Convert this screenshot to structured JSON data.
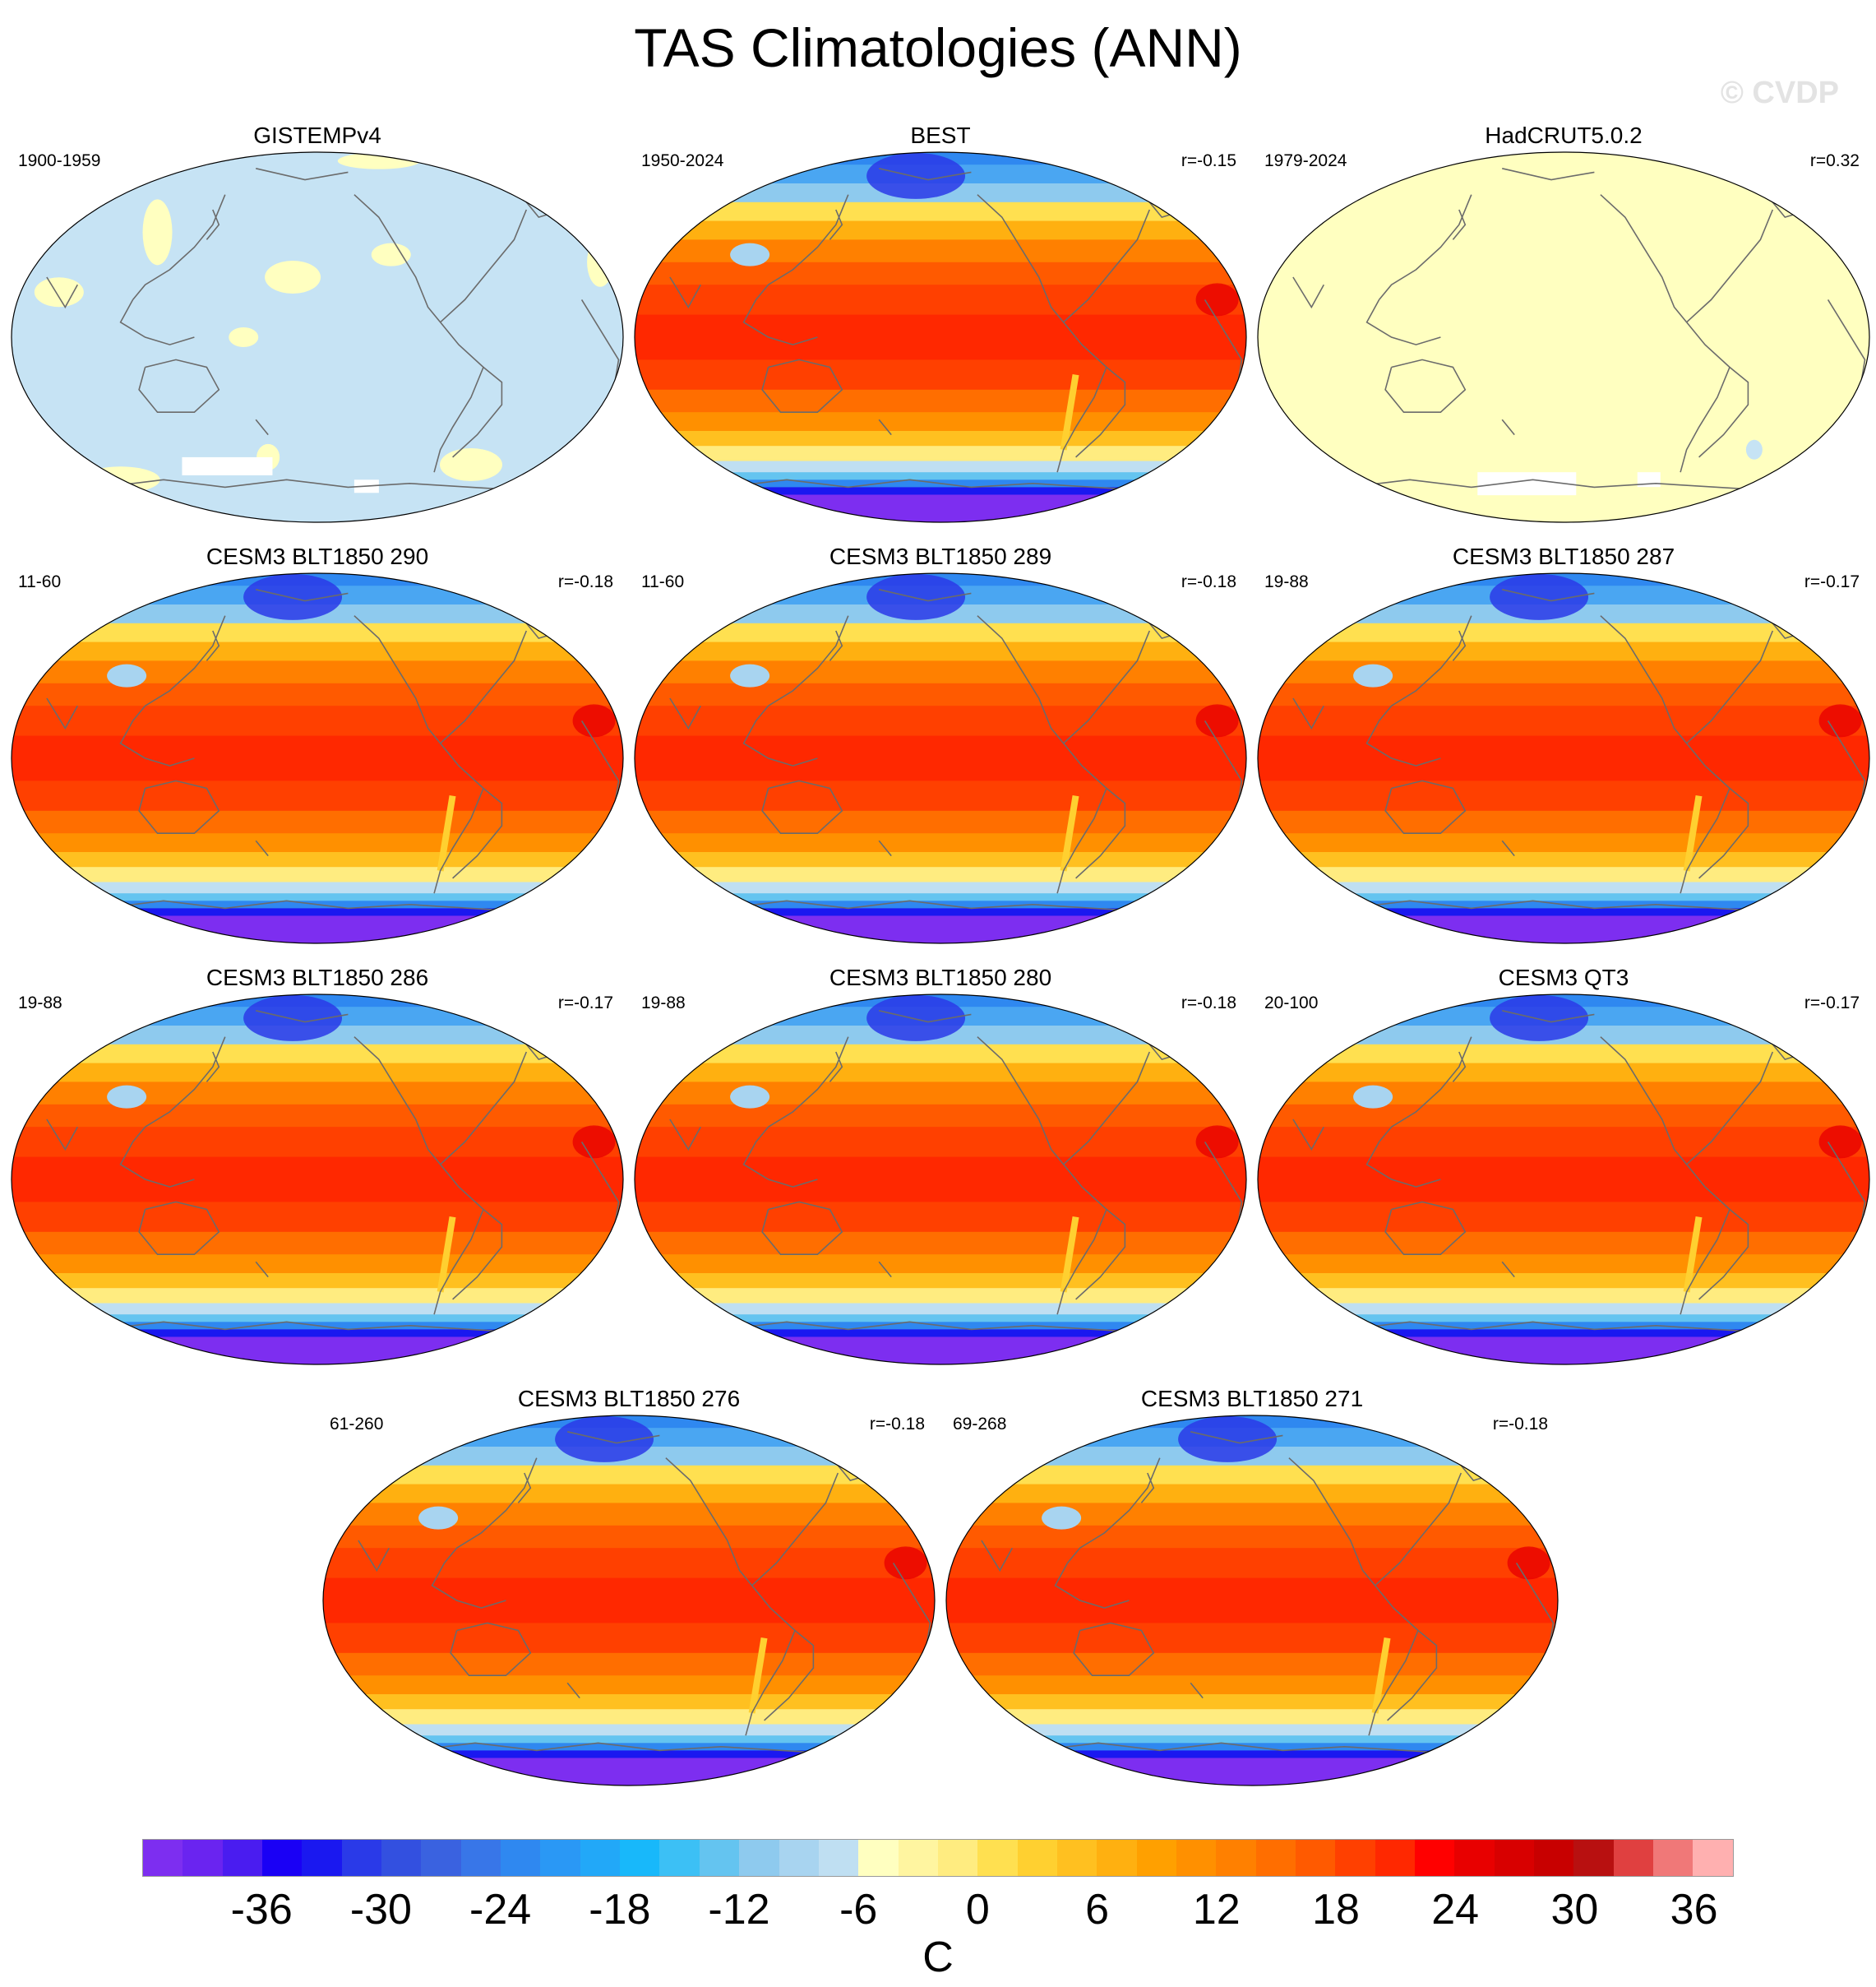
{
  "figure": {
    "title": "TAS Climatologies (ANN)",
    "watermark": "© CVDP"
  },
  "panels": [
    {
      "title": "GISTEMPv4",
      "period": "1900-1959",
      "corr": "",
      "kind": "obs-anom"
    },
    {
      "title": "BEST",
      "period": "1950-2024",
      "corr": "r=-0.15",
      "kind": "full"
    },
    {
      "title": "HadCRUT5.0.2",
      "period": "1979-2024",
      "corr": "r=0.32",
      "kind": "obs-flat"
    },
    {
      "title": "CESM3 BLT1850 290",
      "period": "11-60",
      "corr": "r=-0.18",
      "kind": "full"
    },
    {
      "title": "CESM3 BLT1850 289",
      "period": "11-60",
      "corr": "r=-0.18",
      "kind": "full"
    },
    {
      "title": "CESM3 BLT1850 287",
      "period": "19-88",
      "corr": "r=-0.17",
      "kind": "full"
    },
    {
      "title": "CESM3 BLT1850 286",
      "period": "19-88",
      "corr": "r=-0.17",
      "kind": "full"
    },
    {
      "title": "CESM3 BLT1850 280",
      "period": "19-88",
      "corr": "r=-0.18",
      "kind": "full"
    },
    {
      "title": "CESM3 QT3",
      "period": "20-100",
      "corr": "r=-0.17",
      "kind": "full"
    },
    {
      "title": "CESM3 BLT1850 276",
      "period": "61-260",
      "corr": "r=-0.18",
      "kind": "full"
    },
    {
      "title": "CESM3 BLT1850 271",
      "period": "69-268",
      "corr": "r=-0.18",
      "kind": "full"
    }
  ],
  "colorbar": {
    "units": "C",
    "colors": [
      "#7d2ef0",
      "#6a24f0",
      "#4a1cf0",
      "#1a00f5",
      "#1a18f0",
      "#2a3ae8",
      "#3350e0",
      "#3a62e0",
      "#3876e8",
      "#2f88f0",
      "#2a98f5",
      "#22a8f8",
      "#18b8fa",
      "#3cc0f5",
      "#64c4f0",
      "#8ecaee",
      "#a8d4f0",
      "#bfdff2",
      "#ffffc0",
      "#fff5a0",
      "#ffec80",
      "#ffe050",
      "#ffd030",
      "#ffc020",
      "#ffb010",
      "#ffa000",
      "#ff9000",
      "#ff8000",
      "#ff6e00",
      "#ff5a00",
      "#ff4000",
      "#ff2800",
      "#ff0000",
      "#e80000",
      "#d80000",
      "#c80000",
      "#b81010",
      "#e04040",
      "#f07878",
      "#ffb0b0"
    ],
    "ticks": [
      "-36",
      "-30",
      "-24",
      "-18",
      "-12",
      "-6",
      "0",
      "6",
      "12",
      "18",
      "24",
      "30",
      "36"
    ]
  }
}
